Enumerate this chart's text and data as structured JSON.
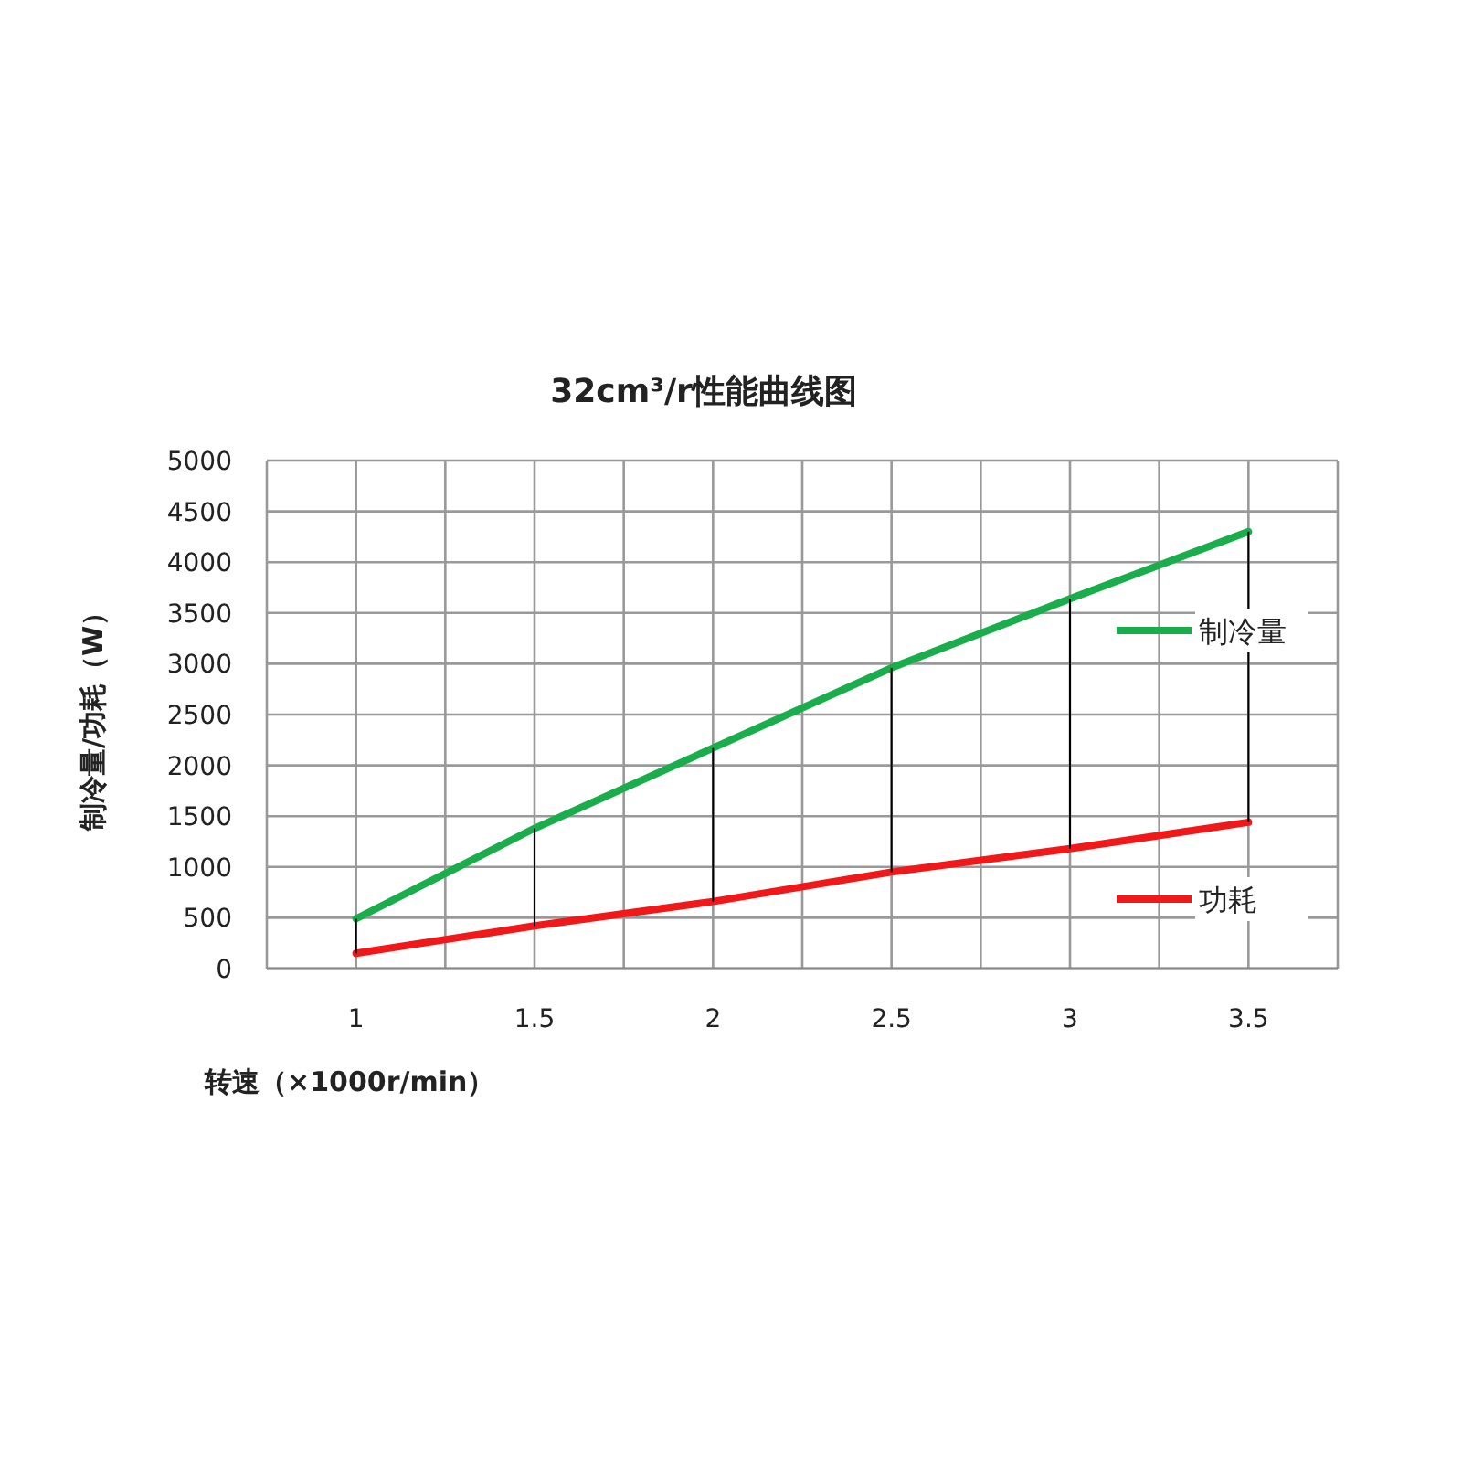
{
  "chart_data": {
    "type": "line",
    "title": "32cm³/r性能曲线图",
    "xlabel": "转速（×1000r/min）",
    "ylabel": "制冷量/功耗（W）",
    "x": [
      1,
      1.5,
      2,
      2.5,
      3,
      3.5
    ],
    "series": [
      {
        "name": "制冷量",
        "color": "#1aad4b",
        "values": [
          490,
          1380,
          2170,
          2960,
          3640,
          4300
        ]
      },
      {
        "name": "功耗",
        "color": "#f01818",
        "values": [
          150,
          420,
          660,
          950,
          1180,
          1440
        ],
        "errors": [
          [
            150,
            490
          ],
          [
            420,
            1380
          ],
          [
            660,
            2170
          ],
          [
            950,
            2960
          ],
          [
            1180,
            3640
          ],
          [
            1440,
            4300
          ]
        ]
      }
    ],
    "xlim": [
      0.75,
      3.75
    ],
    "xticks": [
      {
        "value": 0.75,
        "label": null
      },
      1,
      {
        "value": 1.25,
        "label": null
      },
      1.5,
      {
        "value": 1.75,
        "label": null
      },
      2,
      {
        "value": 2.25,
        "label": null
      },
      2.5,
      {
        "value": 2.75,
        "label": null
      },
      3,
      {
        "value": 3.25,
        "label": null
      },
      3.5,
      {
        "value": 3.75,
        "label": null
      }
    ],
    "ylim": [
      0,
      5000
    ],
    "yticks": [
      0,
      500,
      1000,
      1500,
      2000,
      2500,
      3000,
      3500,
      4000,
      4500,
      5000
    ],
    "grid": true,
    "legend": "right",
    "marker": "none",
    "line_style": "solid"
  }
}
